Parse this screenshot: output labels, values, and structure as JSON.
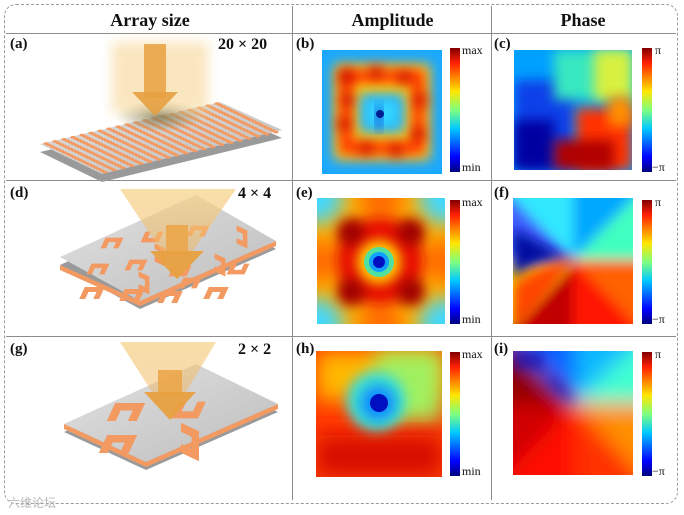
{
  "headers": {
    "col1": "Array size",
    "col2": "Amplitude",
    "col3": "Phase"
  },
  "rows": [
    {
      "label_a": "(a)",
      "size": "20 × 20",
      "label_b": "(b)",
      "label_c": "(c)"
    },
    {
      "label_a": "(d)",
      "size": "4 × 4",
      "label_b": "(e)",
      "label_c": "(f)"
    },
    {
      "label_a": "(g)",
      "size": "2 × 2",
      "label_b": "(h)",
      "label_c": "(i)"
    }
  ],
  "colorbar": {
    "amp_max": "max",
    "amp_min": "min",
    "phase_max": "π",
    "phase_min": "−π"
  },
  "watermark": "六维论坛",
  "colors": {
    "metasurface": "#f39a63",
    "substrate": "#c9c9c9",
    "beam": "#f1c77a",
    "jet_dark_red": "#800000",
    "jet_dark_blue": "#00007f"
  }
}
